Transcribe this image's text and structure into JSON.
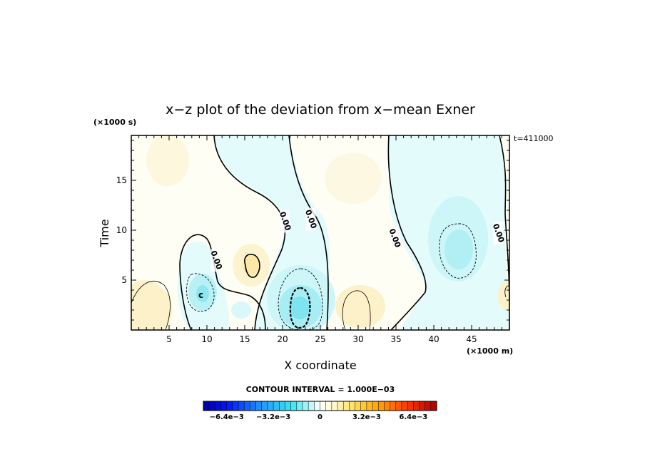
{
  "chart_data": {
    "type": "contour",
    "title": "x−z plot of the deviation from x−mean Exner",
    "xlabel": "X coordinate",
    "ylabel": "Time",
    "x_unit_note": "(×1000 m)",
    "y_unit_note": "(×1000 s)",
    "time_label": "t=411000",
    "contour_interval_label": "CONTOUR INTERVAL = 1.000E−03",
    "contour_interval": 0.001,
    "xlim": [
      0,
      50
    ],
    "ylim": [
      0,
      19.5
    ],
    "xticks": [
      5,
      10,
      15,
      20,
      25,
      30,
      35,
      40,
      45
    ],
    "yticks": [
      5,
      10,
      15
    ],
    "contour_labels": [
      {
        "text": "0.00",
        "x": 11.2,
        "y": 7.0
      },
      {
        "text": "0.00",
        "x": 20.3,
        "y": 10.9
      },
      {
        "text": "0.00",
        "x": 23.7,
        "y": 11.1
      },
      {
        "text": "0.00",
        "x": 34.8,
        "y": 9.2
      },
      {
        "text": "0.00",
        "x": 48.5,
        "y": 9.7
      }
    ],
    "field_features": [
      {
        "kind": "min",
        "x": 22.3,
        "y": 2.6,
        "value": -0.0045
      },
      {
        "kind": "min",
        "x": 9.2,
        "y": 3.6,
        "value": -0.0025
      },
      {
        "kind": "min",
        "x": 43.0,
        "y": 7.8,
        "value": -0.0022
      },
      {
        "kind": "max",
        "x": 16.0,
        "y": 6.5,
        "value": 0.0012
      },
      {
        "kind": "max",
        "x": 3.0,
        "y": 2.5,
        "value": 0.0012
      },
      {
        "kind": "max",
        "x": 29.5,
        "y": 2.2,
        "value": 0.0012
      }
    ],
    "center_marker": {
      "text": "c",
      "x": 9.2,
      "y": 3.5
    },
    "colorbar": {
      "min": -0.008,
      "max": 0.008,
      "step": 0.0004,
      "tick_labels": [
        "−6.4e−3",
        "−3.2e−3",
        "0",
        "3.2e−3",
        "6.4e−3"
      ],
      "tick_values": [
        -0.0064,
        -0.0032,
        0,
        0.0032,
        0.0064
      ]
    }
  }
}
